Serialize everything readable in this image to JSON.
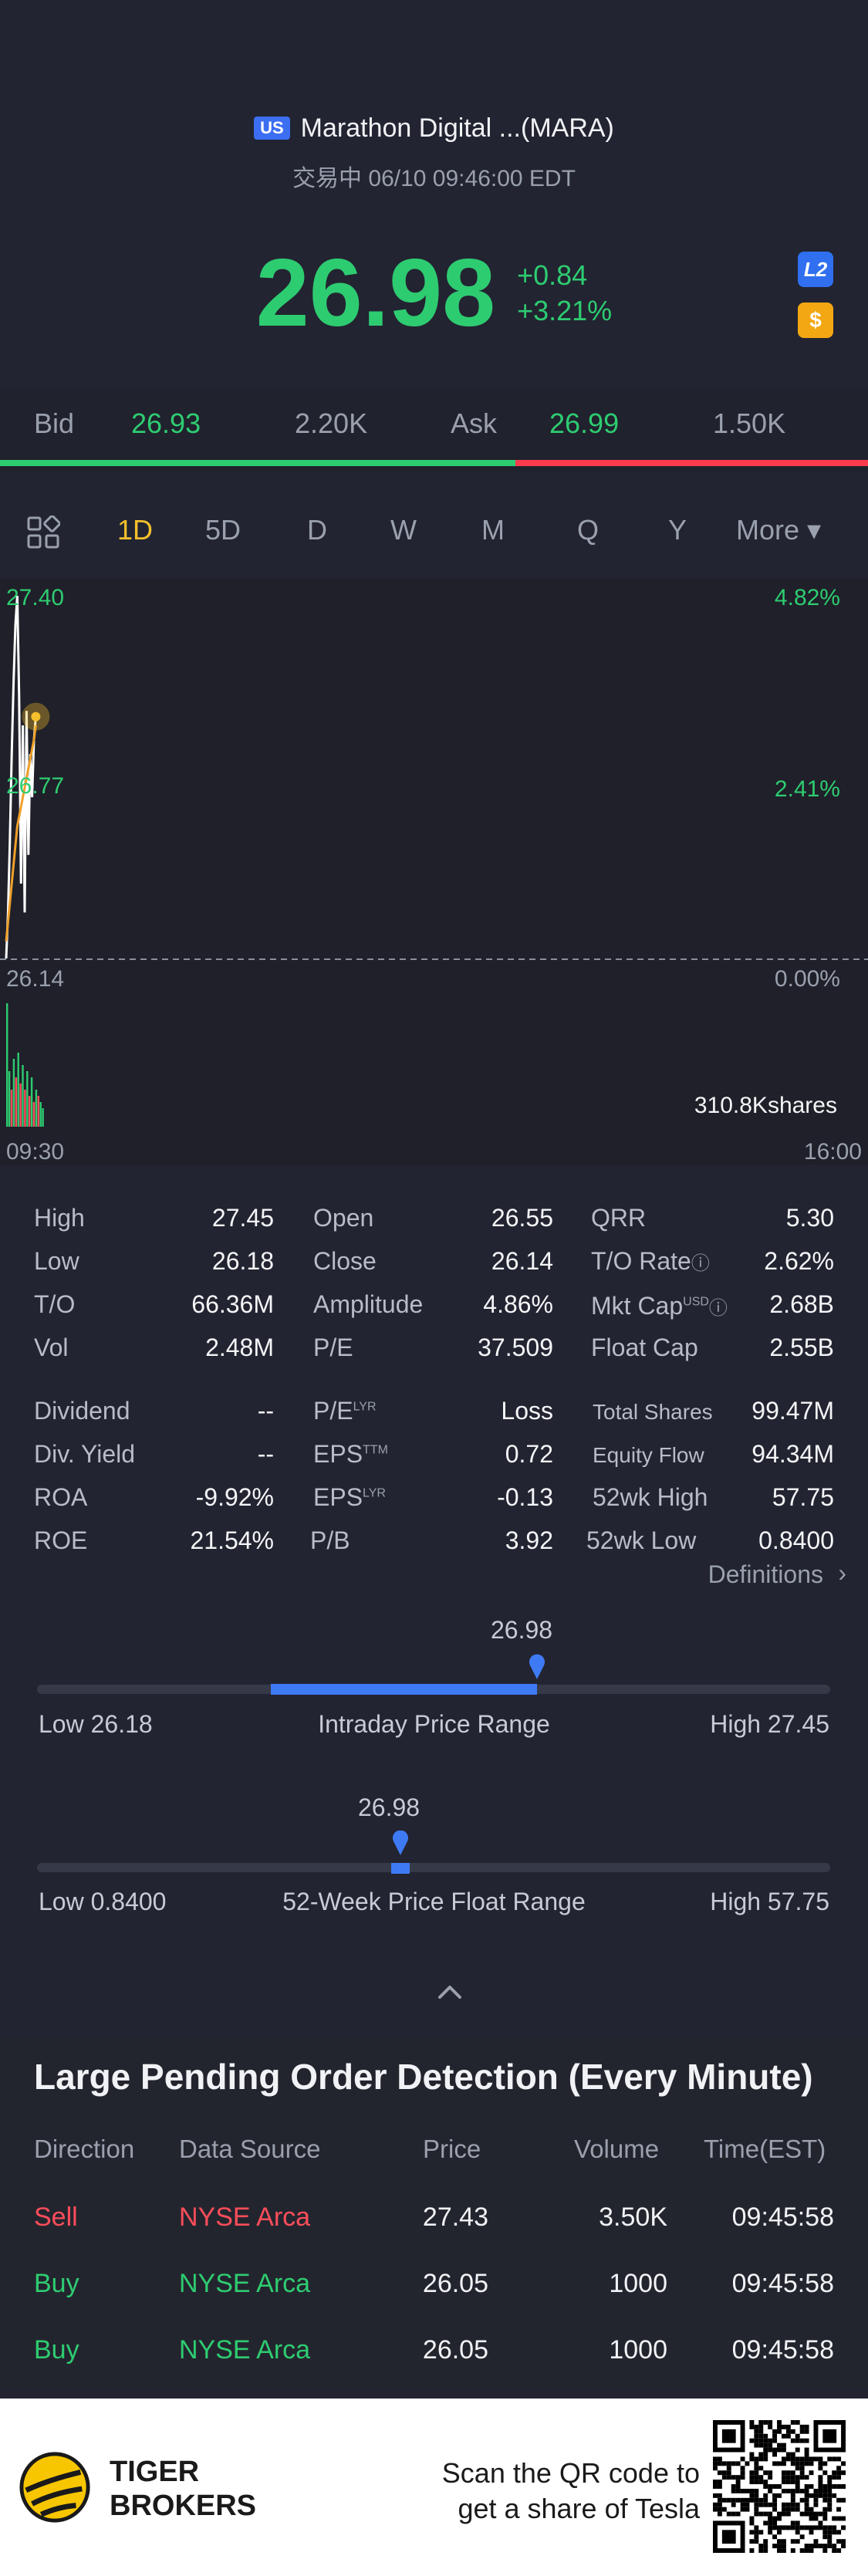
{
  "header": {
    "market_badge": "US",
    "stock_name": "Marathon Digital ...(MARA)",
    "status": "交易中 06/10 09:46:00 EDT",
    "price": "26.98",
    "change": "+0.84",
    "change_pct": "+3.21%",
    "l2_badge": "L2",
    "currency_badge": "$"
  },
  "bid_ask": {
    "bid_label": "Bid",
    "bid_price": "26.93",
    "bid_size": "2.20K",
    "ask_label": "Ask",
    "ask_price": "26.99",
    "ask_size": "1.50K",
    "bid_fraction": 0.594
  },
  "tabs": [
    "1D",
    "5D",
    "D",
    "W",
    "M",
    "Q",
    "Y",
    "More ▾"
  ],
  "active_tab": "1D",
  "chart": {
    "high_label": "27.40",
    "mid_label": "26.77",
    "low_label": "26.14",
    "pct_high": "4.82%",
    "pct_mid": "2.41%",
    "pct_low": "0.00%",
    "volume_label": "310.8Kshares",
    "time_start": "09:30",
    "time_end": "16:00"
  },
  "chart_data": {
    "type": "line",
    "title": "",
    "xlabel": "",
    "ylabel": "",
    "ylim": [
      26.14,
      27.4
    ],
    "x_range": [
      "09:30",
      "16:00"
    ],
    "grid": false,
    "series": [
      {
        "name": "",
        "color": "#ffffff",
        "x": [
          "09:30",
          "09:31",
          "09:32",
          "09:33",
          "09:34",
          "09:35",
          "09:36",
          "09:37",
          "09:38",
          "09:39",
          "09:40",
          "09:41",
          "09:42",
          "09:43",
          "09:44",
          "09:45",
          "09:46"
        ],
        "values": [
          26.14,
          26.3,
          26.55,
          26.85,
          27.1,
          27.3,
          27.4,
          27.05,
          26.4,
          26.95,
          26.3,
          27.0,
          26.5,
          26.85,
          26.7,
          26.9,
          26.98
        ]
      },
      {
        "name": "",
        "color": "#f0a02a",
        "x": [
          "09:30",
          "09:33",
          "09:36",
          "09:39",
          "09:42",
          "09:45",
          "09:46"
        ],
        "values": [
          26.2,
          26.4,
          26.6,
          26.7,
          26.8,
          26.9,
          26.95
        ]
      }
    ],
    "volume_series": {
      "colors": [
        "#2ecc71",
        "#ff4d5a"
      ],
      "values": [
        1.0,
        0.45,
        0.3,
        0.55,
        0.4,
        0.6,
        0.35,
        0.5,
        0.3,
        0.45,
        0.25,
        0.4,
        0.2,
        0.3,
        0.25,
        0.2,
        0.15
      ],
      "up": [
        true,
        true,
        false,
        true,
        false,
        true,
        false,
        true,
        false,
        true,
        false,
        true,
        false,
        true,
        false,
        true,
        true
      ]
    }
  },
  "stats": {
    "high": {
      "label": "High",
      "value": "27.45"
    },
    "low": {
      "label": "Low",
      "value": "26.18"
    },
    "to": {
      "label": "T/O",
      "value": "66.36M"
    },
    "vol": {
      "label": "Vol",
      "value": "2.48M"
    },
    "open": {
      "label": "Open",
      "value": "26.55"
    },
    "close": {
      "label": "Close",
      "value": "26.14"
    },
    "amplitude": {
      "label": "Amplitude",
      "value": "4.86%"
    },
    "pe": {
      "label": "P/E",
      "value": "37.509"
    },
    "qrr": {
      "label": "QRR",
      "value": "5.30"
    },
    "to_rate": {
      "label": "T/O Rate",
      "value": "2.62%"
    },
    "mkt_cap": {
      "label": "Mkt Cap",
      "sup": "USD",
      "value": "2.68B"
    },
    "float_cap": {
      "label": "Float Cap",
      "value": "2.55B"
    },
    "dividend": {
      "label": "Dividend",
      "value": "--"
    },
    "div_yield": {
      "label": "Div. Yield",
      "value": "--"
    },
    "roa": {
      "label": "ROA",
      "value": "-9.92%"
    },
    "roe": {
      "label": "ROE",
      "value": "21.54%"
    },
    "pe_lyr": {
      "label": "P/E",
      "sup": "LYR",
      "value": "Loss"
    },
    "eps_ttm": {
      "label": "EPS",
      "sup": "TTM",
      "value": "0.72"
    },
    "eps_lyr": {
      "label": "EPS",
      "sup": "LYR",
      "value": "-0.13"
    },
    "pb": {
      "label": "P/B",
      "value": "3.92"
    },
    "total_shares": {
      "label": "Total Shares",
      "value": "99.47M"
    },
    "equity_flow": {
      "label": "Equity Flow",
      "value": "94.34M"
    },
    "wk52_high": {
      "label": "52wk High",
      "value": "57.75"
    },
    "wk52_low": {
      "label": "52wk Low",
      "value": "0.8400"
    },
    "definitions": "Definitions"
  },
  "intraday_range": {
    "current": "26.98",
    "low_label": "Low 26.18",
    "title": "Intraday Price Range",
    "high_label": "High 27.45",
    "fill_start_fraction": 0.295,
    "marker_fraction": 0.63
  },
  "week52_range": {
    "current": "26.98",
    "low_label": "Low 0.8400",
    "title": "52-Week Price Float Range",
    "high_label": "High 57.75",
    "marker_fraction": 0.458
  },
  "orders": {
    "title": "Large Pending Order Detection (Every Minute)",
    "headers": [
      "Direction",
      "Data Source",
      "Price",
      "Volume",
      "Time(EST)"
    ],
    "rows": [
      {
        "direction": "Sell",
        "source": "NYSE Arca",
        "price": "27.43",
        "volume": "3.50K",
        "time": "09:45:58",
        "side": "sell"
      },
      {
        "direction": "Buy",
        "source": "NYSE Arca",
        "price": "26.05",
        "volume": "1000",
        "time": "09:45:58",
        "side": "buy"
      },
      {
        "direction": "Buy",
        "source": "NYSE Arca",
        "price": "26.05",
        "volume": "1000",
        "time": "09:45:58",
        "side": "buy"
      }
    ]
  },
  "footer": {
    "brand_line1": "TIGER",
    "brand_line2": "BROKERS",
    "promo_line1": "Scan the QR code to",
    "promo_line2": "get a share of Tesla"
  },
  "colors": {
    "up": "#2ecc71",
    "down": "#ff4d5a",
    "accent": "#3f7af5",
    "active_tab": "#f5c02b",
    "background": "#222431"
  }
}
